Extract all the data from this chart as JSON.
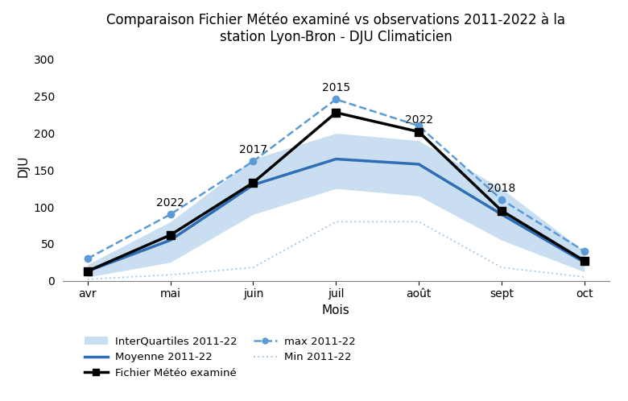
{
  "title": "Comparaison Fichier Météo examiné vs observations 2011-2022 à la\nstation Lyon-Bron - DJU Climaticien",
  "xlabel": "Mois",
  "ylabel": "DJU",
  "categories": [
    "avr",
    "mai",
    "juin",
    "juil",
    "août",
    "sept",
    "oct"
  ],
  "moyenne": [
    13,
    55,
    130,
    165,
    158,
    90,
    25
  ],
  "iq_lower": [
    5,
    25,
    90,
    125,
    115,
    55,
    12
  ],
  "iq_upper": [
    22,
    80,
    165,
    200,
    190,
    125,
    40
  ],
  "fichier_meteo": [
    13,
    62,
    133,
    228,
    202,
    95,
    27
  ],
  "max_values": [
    30,
    90,
    162,
    246,
    210,
    110,
    40
  ],
  "min_values": [
    2,
    8,
    18,
    80,
    80,
    18,
    5
  ],
  "annotations": {
    "mai": "2022",
    "juin": "2017",
    "juil": "2015",
    "aout": "2022",
    "sept": "2018"
  },
  "color_moyenne": "#2F6DB5",
  "color_fichier": "#000000",
  "color_max": "#5B9BD5",
  "color_min": "#9DC3E6",
  "color_iq_fill": "#9DC3E6",
  "color_iq_fill_alpha": 0.55,
  "ylim": [
    0,
    310
  ],
  "yticks": [
    0,
    50,
    100,
    150,
    200,
    250,
    300
  ],
  "title_fontsize": 12,
  "axis_fontsize": 11,
  "tick_fontsize": 10,
  "annotation_fontsize": 10
}
